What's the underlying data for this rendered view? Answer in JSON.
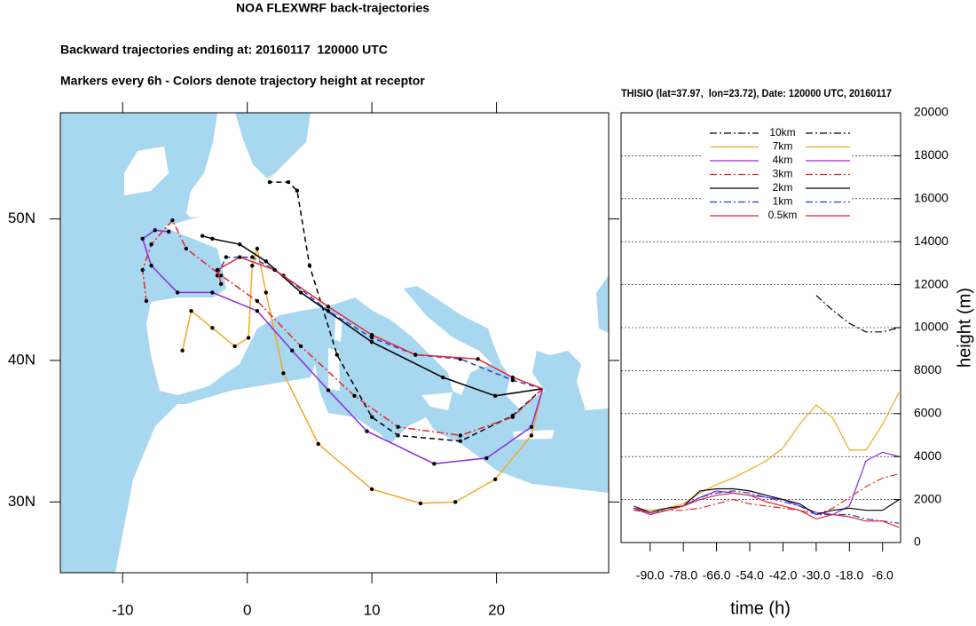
{
  "title": "NOA FLEXWRF back-trajectories",
  "subtitle": "Backward trajectories ending at: 20160117  120000 UTC",
  "note": "Markers every 6h - Colors denote trajectory height at receptor",
  "chart_data": [
    {
      "type": "trajectory",
      "xlim": [
        -15,
        29
      ],
      "ylim": [
        25,
        57.5
      ],
      "xticks": [
        -10,
        0,
        10,
        20
      ],
      "yticks": [
        {
          "value": 30,
          "label": "30N"
        },
        {
          "value": 40,
          "label": "40N"
        },
        {
          "value": 50,
          "label": "50N"
        }
      ],
      "series": [
        {
          "color": "#000000",
          "dash": "dash",
          "x": [
            23.7,
            21.3,
            17.1,
            12.1,
            10.0,
            7.2,
            5.0,
            4.0,
            3.3,
            1.8
          ],
          "y": [
            38.0,
            36.1,
            34.3,
            34.7,
            36.0,
            40.4,
            46.7,
            52.0,
            52.6,
            52.6
          ]
        },
        {
          "color": "#f5a623",
          "dash": "solid",
          "x": [
            23.7,
            22.8,
            19.9,
            16.7,
            13.9,
            10.0,
            5.7,
            2.9,
            1.5,
            0.8,
            0.4,
            0.1,
            -1.0,
            -2.8,
            -4.5,
            -5.2
          ],
          "y": [
            38.0,
            34.7,
            31.6,
            30.0,
            29.9,
            30.9,
            34.1,
            39.1,
            44.8,
            47.9,
            46.7,
            41.6,
            41.0,
            42.3,
            43.5,
            40.7
          ]
        },
        {
          "color": "#8a2be2",
          "dash": "solid",
          "x": [
            23.7,
            22.8,
            19.2,
            15.0,
            9.6,
            6.5,
            3.6,
            0.8,
            -2.8,
            -5.6,
            -7.7,
            -8.4,
            -7.4,
            -6.3
          ],
          "y": [
            38.0,
            35.3,
            33.1,
            32.7,
            35.0,
            37.9,
            40.7,
            43.5,
            44.8,
            44.8,
            46.7,
            48.6,
            49.2,
            49.1
          ]
        },
        {
          "color": "#e8262b",
          "dash": "dashdot",
          "x": [
            23.7,
            21.3,
            17.1,
            12.1,
            8.6,
            4.3,
            0.8,
            -2.1,
            -4.9,
            -6.0,
            -7.7,
            -8.4,
            -8.1
          ],
          "y": [
            38.0,
            36.0,
            34.7,
            35.3,
            37.5,
            41.0,
            44.2,
            46.0,
            47.9,
            49.9,
            48.2,
            46.4,
            44.2
          ]
        },
        {
          "color": "#000000",
          "dash": "solid",
          "x": [
            23.7,
            19.9,
            15.7,
            10.0,
            4.3,
            1.5,
            -0.6,
            -2.8,
            -3.6
          ],
          "y": [
            38.0,
            37.5,
            38.8,
            41.3,
            44.8,
            47.0,
            48.2,
            48.6,
            48.8
          ]
        },
        {
          "color": "#1f3fd6",
          "dash": "dash",
          "x": [
            23.7,
            21.3,
            17.1,
            13.5,
            10.0,
            6.5,
            2.9,
            0.4,
            -1.7,
            -2.4
          ],
          "y": [
            38.0,
            38.6,
            40.1,
            40.4,
            41.6,
            43.5,
            46.0,
            47.3,
            47.3,
            46.0
          ]
        },
        {
          "color": "#e8262b",
          "dash": "solid",
          "x": [
            23.7,
            21.3,
            18.5,
            13.5,
            10.0,
            6.5,
            2.2,
            -0.6,
            -2.4,
            -2.1
          ],
          "y": [
            38.0,
            38.8,
            40.1,
            40.4,
            41.8,
            43.8,
            46.4,
            47.3,
            46.4,
            45.4
          ]
        }
      ]
    },
    {
      "type": "line",
      "title": "THISIO (lat=37.97,  lon=23.72), Date: 120000 UTC, 20160117",
      "xlabel": "time (h)",
      "ylabel": "height (m)",
      "xlim": [
        -100.5,
        0.5
      ],
      "ylim": [
        0,
        20000
      ],
      "xticks": [
        {
          "value": -90,
          "label": "-90.0"
        },
        {
          "value": -78,
          "label": "-78.0"
        },
        {
          "value": -66,
          "label": "-66.0"
        },
        {
          "value": -54,
          "label": "-54.0"
        },
        {
          "value": -42,
          "label": "-42.0"
        },
        {
          "value": -30,
          "label": "-30.0"
        },
        {
          "value": -18,
          "label": "-18.0"
        },
        {
          "value": -6,
          "label": "-6.0"
        }
      ],
      "yticks": [
        0,
        2000,
        4000,
        6000,
        8000,
        10000,
        12000,
        14000,
        16000,
        18000,
        20000
      ],
      "grid": true,
      "x": [
        -96,
        -90,
        -84,
        -78,
        -72,
        -66,
        -60,
        -54,
        -48,
        -42,
        -36,
        -30,
        -24,
        -18,
        -12,
        -6,
        0
      ],
      "series": [
        {
          "name": "10km",
          "color": "#000000",
          "dash": "dashdot",
          "values": [
            null,
            null,
            null,
            null,
            null,
            null,
            null,
            null,
            null,
            null,
            null,
            11500,
            10800,
            10200,
            9800,
            9800,
            10000
          ]
        },
        {
          "name": "7km",
          "color": "#f5a623",
          "dash": "solid",
          "values": [
            1600,
            1500,
            1600,
            1800,
            2300,
            2700,
            3000,
            3400,
            3800,
            4400,
            5500,
            6400,
            5800,
            4300,
            4300,
            5500,
            7000
          ]
        },
        {
          "name": "4km",
          "color": "#8a2be2",
          "dash": "solid",
          "values": [
            1600,
            1300,
            1500,
            1700,
            2100,
            2400,
            2300,
            2200,
            2100,
            2000,
            1700,
            1400,
            1300,
            1700,
            3800,
            4200,
            4000
          ]
        },
        {
          "name": "3km",
          "color": "#e8262b",
          "dash": "dashdot",
          "values": [
            1500,
            1400,
            1500,
            1500,
            1600,
            1800,
            2000,
            1800,
            1700,
            1600,
            1500,
            1300,
            1600,
            2100,
            2600,
            3000,
            3200
          ]
        },
        {
          "name": "2km",
          "color": "#000000",
          "dash": "solid",
          "values": [
            1700,
            1400,
            1600,
            1700,
            2400,
            2500,
            2500,
            2400,
            2200,
            2000,
            1800,
            1300,
            1500,
            1600,
            1500,
            1500,
            2000
          ]
        },
        {
          "name": "1km",
          "color": "#1f3fd6",
          "dash": "dashdot",
          "values": [
            1600,
            1400,
            1500,
            1700,
            2100,
            2300,
            2400,
            2300,
            2100,
            1900,
            1700,
            1300,
            1300,
            1300,
            1100,
            1000,
            900
          ]
        },
        {
          "name": "0.5km",
          "color": "#e8262b",
          "dash": "solid",
          "values": [
            1700,
            1300,
            1500,
            1700,
            2000,
            2200,
            2300,
            2200,
            1900,
            1700,
            1500,
            1100,
            1300,
            1200,
            1000,
            1000,
            700
          ]
        }
      ]
    }
  ]
}
